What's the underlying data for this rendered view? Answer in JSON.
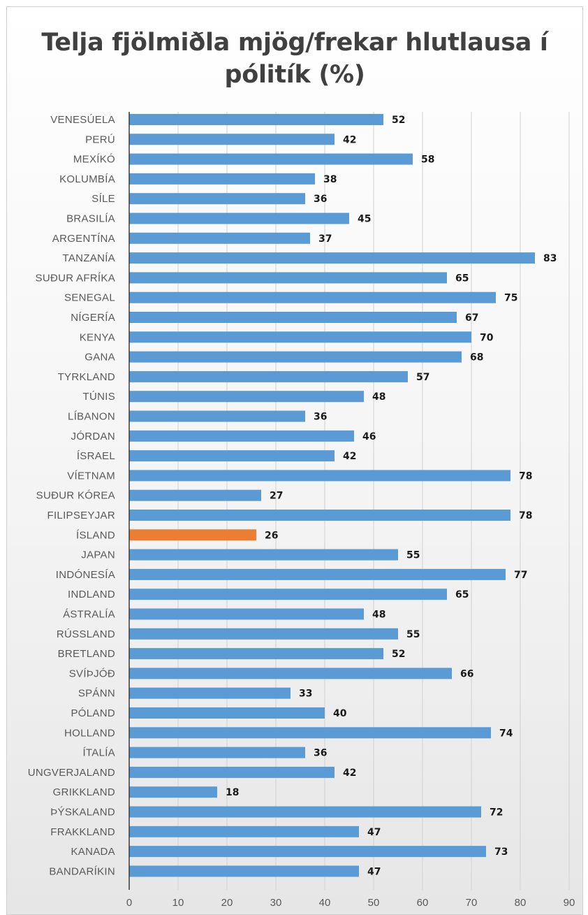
{
  "chart_data": {
    "type": "bar",
    "orientation": "horizontal",
    "title": "Telja fjölmiðla mjög/frekar hlutlausa í pólitík (%)",
    "title_lines": [
      "Telja fjölmiðla mjög/frekar hlutlausa í",
      "pólitík (%)"
    ],
    "categories": [
      "VENESÚELA",
      "PERÚ",
      "MEXÍKÓ",
      "KOLUMBÍA",
      "SÍLE",
      "BRASILÍA",
      "ARGENTÍNA",
      "TANZANÍA",
      "SUÐUR AFRÍKA",
      "SENEGAL",
      "NÍGERÍA",
      "KENYA",
      "GANA",
      "TYRKLAND",
      "TÚNIS",
      "LÍBANON",
      "JÓRDAN",
      "ÍSRAEL",
      "VÍETNAM",
      "SUÐUR KÓREA",
      "FILIPSEYJAR",
      "ÍSLAND",
      "JAPAN",
      "INDÓNESÍA",
      "INDLAND",
      "ÁSTRALÍA",
      "RÚSSLAND",
      "BRETLAND",
      "SVÍÞJÓÐ",
      "SPÁNN",
      "PÓLAND",
      "HOLLAND",
      "ÍTALÍA",
      "UNGVERJALAND",
      "GRIKKLAND",
      "ÞÝSKALAND",
      "FRAKKLAND",
      "KANADA",
      "BANDARÍKIN"
    ],
    "values": [
      52,
      42,
      58,
      38,
      36,
      45,
      37,
      83,
      65,
      75,
      67,
      70,
      68,
      57,
      48,
      36,
      46,
      42,
      78,
      27,
      78,
      26,
      55,
      77,
      65,
      48,
      55,
      52,
      66,
      33,
      40,
      74,
      36,
      42,
      18,
      72,
      47,
      73,
      47
    ],
    "highlight": "ÍSLAND",
    "xlim": [
      0,
      90
    ],
    "xticks": [
      "0",
      "10",
      "20",
      "30",
      "40",
      "50",
      "60",
      "70",
      "80",
      "90"
    ],
    "grid": true,
    "legend": "none",
    "colors": {
      "bar": "#5b9bd5",
      "highlight": "#ed7d31",
      "grid": "#d0d0d0",
      "axis": "#3a3a3a"
    }
  }
}
